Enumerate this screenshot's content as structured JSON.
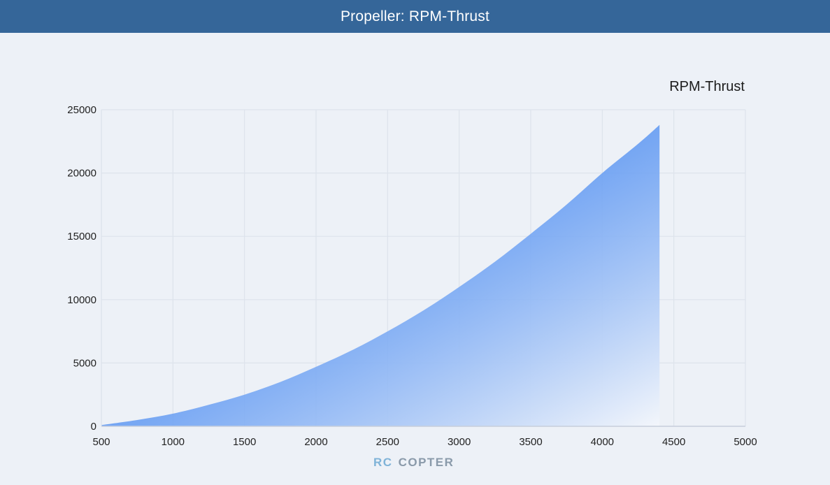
{
  "header": {
    "title": "Propeller: RPM-Thrust"
  },
  "watermark": {
    "rc": "RC",
    "copter": "COPTER"
  },
  "colors": {
    "area_top": "#5d97f2",
    "area_bottom": "#f3f6fb",
    "grid": "#dde3ec",
    "axis": "#c7cfdb"
  },
  "chart_data": {
    "type": "area",
    "title": "RPM-Thrust",
    "xlabel": "",
    "ylabel": "",
    "xlim": [
      500,
      5000
    ],
    "ylim": [
      0,
      25000
    ],
    "xticks": [
      500,
      1000,
      1500,
      2000,
      2500,
      3000,
      3500,
      4000,
      4500,
      5000
    ],
    "yticks": [
      0,
      5000,
      10000,
      15000,
      20000,
      25000
    ],
    "grid": true,
    "series": [
      {
        "name": "RPM-Thrust",
        "x": [
          500,
          750,
          1000,
          1250,
          1500,
          1750,
          2000,
          2250,
          2500,
          2750,
          3000,
          3250,
          3500,
          3750,
          4000,
          4250,
          4400
        ],
        "values": [
          100,
          500,
          1000,
          1700,
          2500,
          3500,
          4700,
          6000,
          7500,
          9150,
          11000,
          13000,
          15200,
          17500,
          20000,
          22300,
          23800
        ]
      }
    ]
  }
}
